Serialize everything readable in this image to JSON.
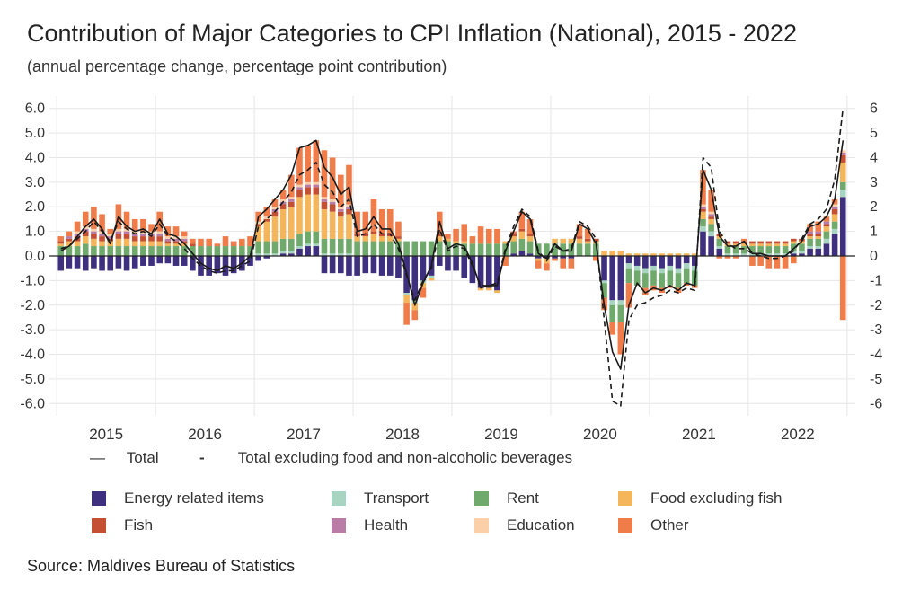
{
  "chart_data": {
    "type": "bar",
    "title": "Contribution of Major Categories to CPI Inflation (National), 2015 - 2022",
    "subtitle": "(annual percentage change, percentage point contribution)",
    "source": "Source: Maldives Bureau of Statistics",
    "ylim": [
      -6.5,
      6.5
    ],
    "y_ticks_left": [
      "6.0",
      "5.0",
      "4.0",
      "3.0",
      "2.0",
      "1.0",
      "0.0",
      "-1.0",
      "-2.0",
      "-3.0",
      "-4.0",
      "-5.0",
      "-6.0"
    ],
    "y_ticks_right": [
      "6",
      "5",
      "4",
      "3",
      "2",
      "1",
      "0",
      "-1",
      "-2",
      "-3",
      "-4",
      "-5",
      "-6"
    ],
    "x_ticks": [
      "2015",
      "2016",
      "2017",
      "2018",
      "2019",
      "2020",
      "2021",
      "2022"
    ],
    "grid": true,
    "start_month": "2015-01",
    "lines": [
      {
        "name": "Total",
        "style": "solid",
        "color": "#1a1a1a",
        "values": [
          0.2,
          0.4,
          0.8,
          1.2,
          1.5,
          1.1,
          0.5,
          1.6,
          1.2,
          1.0,
          1.1,
          0.9,
          1.5,
          0.9,
          0.8,
          0.5,
          0.1,
          -0.3,
          -0.5,
          -0.6,
          -0.4,
          -0.5,
          -0.3,
          0.0,
          1.6,
          1.9,
          2.3,
          2.7,
          3.3,
          4.4,
          4.5,
          4.7,
          3.6,
          3.2,
          2.5,
          2.8,
          1.0,
          1.1,
          1.6,
          1.1,
          1.1,
          0.5,
          -0.7,
          -2.0,
          -1.1,
          -0.4,
          1.4,
          0.3,
          0.5,
          0.4,
          -0.3,
          -1.3,
          -1.2,
          -1.2,
          0.2,
          1.0,
          1.8,
          1.5,
          0.1,
          -0.1,
          0.5,
          0.2,
          0.2,
          1.3,
          1.1,
          0.5,
          -2.0,
          -3.9,
          -4.6,
          -2.0,
          -1.1,
          -1.5,
          -1.3,
          -1.4,
          -1.2,
          -1.4,
          -1.1,
          -1.2,
          3.5,
          2.7,
          0.8,
          0.4,
          0.4,
          0.6,
          0.1,
          0.1,
          0.0,
          0.0,
          0.0,
          0.3,
          0.6,
          1.2,
          1.3,
          1.6,
          2.3,
          4.7
        ]
      },
      {
        "name": "Total excluding food and non-alcoholic beverages",
        "style": "dashed",
        "color": "#1a1a1a",
        "values": [
          0.3,
          0.4,
          0.7,
          1.0,
          1.4,
          1.0,
          0.6,
          1.4,
          1.1,
          0.9,
          1.0,
          0.8,
          1.3,
          0.8,
          0.6,
          0.3,
          -0.1,
          -0.4,
          -0.6,
          -0.7,
          -0.6,
          -0.6,
          -0.4,
          -0.2,
          1.2,
          1.5,
          1.8,
          2.2,
          2.6,
          3.3,
          3.5,
          3.8,
          2.9,
          2.6,
          2.0,
          2.3,
          0.8,
          0.9,
          1.3,
          0.9,
          0.9,
          0.3,
          -0.8,
          -1.8,
          -1.0,
          -0.5,
          1.1,
          0.2,
          0.4,
          0.3,
          -0.4,
          -1.2,
          -1.2,
          -1.1,
          0.3,
          1.2,
          1.9,
          1.6,
          0.2,
          -0.2,
          0.4,
          0.2,
          0.3,
          1.4,
          1.2,
          0.7,
          -2.6,
          -5.9,
          -6.1,
          -2.6,
          -2.0,
          -1.9,
          -1.7,
          -1.6,
          -1.4,
          -1.5,
          -1.3,
          -1.4,
          4.0,
          3.6,
          1.0,
          0.5,
          0.3,
          0.3,
          0.1,
          0.0,
          -0.1,
          -0.1,
          0.0,
          0.2,
          0.7,
          1.3,
          1.5,
          1.9,
          3.1,
          6.0
        ]
      }
    ],
    "series": [
      {
        "name": "Energy related items",
        "color": "#3f2f7f",
        "values": [
          -0.6,
          -0.5,
          -0.5,
          -0.6,
          -0.5,
          -0.6,
          -0.6,
          -0.5,
          -0.6,
          -0.5,
          -0.4,
          -0.4,
          -0.3,
          -0.3,
          -0.4,
          -0.4,
          -0.6,
          -0.8,
          -0.8,
          -0.7,
          -0.8,
          -0.7,
          -0.6,
          -0.4,
          -0.2,
          -0.1,
          0.0,
          0.1,
          0.1,
          0.3,
          0.4,
          0.4,
          -0.7,
          -0.7,
          -0.7,
          -0.8,
          -0.8,
          -0.7,
          -0.7,
          -0.8,
          -0.8,
          -0.9,
          -1.5,
          -1.8,
          -1.0,
          -0.8,
          -0.4,
          -0.6,
          -0.6,
          -0.9,
          -1.1,
          -1.3,
          -1.3,
          -1.4,
          0.0,
          0.1,
          0.2,
          0.1,
          -0.1,
          -0.1,
          -0.1,
          -0.1,
          -0.1,
          0.0,
          0.0,
          0.0,
          -1.0,
          -1.8,
          -1.8,
          -0.3,
          -0.4,
          -0.5,
          -0.4,
          -0.5,
          -0.4,
          -0.5,
          -0.3,
          -0.4,
          1.0,
          0.8,
          0.3,
          0.0,
          0.0,
          0.0,
          0.0,
          0.0,
          0.0,
          0.0,
          0.0,
          0.1,
          0.1,
          0.3,
          0.3,
          0.5,
          0.9,
          2.4
        ]
      },
      {
        "name": "Transport",
        "color": "#a8d5c2",
        "values": [
          0.0,
          0.0,
          0.0,
          0.0,
          0.0,
          0.0,
          0.0,
          0.0,
          0.0,
          0.0,
          0.0,
          0.0,
          0.0,
          0.0,
          0.0,
          0.0,
          0.0,
          0.0,
          0.0,
          0.0,
          0.0,
          0.0,
          0.0,
          0.0,
          0.1,
          0.1,
          0.1,
          0.1,
          0.1,
          0.1,
          0.1,
          0.1,
          0.1,
          0.1,
          0.1,
          0.1,
          0.0,
          0.0,
          0.0,
          0.0,
          0.0,
          0.0,
          -0.1,
          -0.1,
          -0.1,
          -0.1,
          0.0,
          0.0,
          0.0,
          0.0,
          0.0,
          0.0,
          0.0,
          0.0,
          0.0,
          0.0,
          0.0,
          0.0,
          0.0,
          0.0,
          0.0,
          0.0,
          0.0,
          0.0,
          0.0,
          0.0,
          -0.1,
          -0.2,
          -0.2,
          -0.2,
          -0.2,
          -0.2,
          -0.2,
          -0.2,
          -0.2,
          -0.2,
          -0.2,
          -0.2,
          0.2,
          0.2,
          0.1,
          0.1,
          0.1,
          0.1,
          0.1,
          0.1,
          0.1,
          0.1,
          0.1,
          0.1,
          0.1,
          0.1,
          0.1,
          0.2,
          0.2,
          0.3
        ]
      },
      {
        "name": "Rent",
        "color": "#6fa96c",
        "values": [
          0.4,
          0.4,
          0.4,
          0.5,
          0.4,
          0.4,
          0.4,
          0.4,
          0.4,
          0.4,
          0.4,
          0.4,
          0.4,
          0.4,
          0.4,
          0.4,
          0.4,
          0.4,
          0.4,
          0.4,
          0.4,
          0.4,
          0.4,
          0.4,
          0.5,
          0.5,
          0.5,
          0.5,
          0.5,
          0.5,
          0.5,
          0.5,
          0.6,
          0.6,
          0.6,
          0.6,
          0.6,
          0.6,
          0.6,
          0.6,
          0.6,
          0.6,
          0.6,
          0.6,
          0.6,
          0.6,
          0.6,
          0.6,
          0.5,
          0.5,
          0.5,
          0.5,
          0.5,
          0.5,
          0.5,
          0.5,
          0.5,
          0.5,
          0.5,
          0.5,
          0.5,
          0.5,
          0.5,
          0.5,
          0.5,
          0.5,
          -0.6,
          -0.7,
          -0.7,
          -0.6,
          -0.6,
          -0.6,
          -0.6,
          -0.6,
          -0.6,
          -0.6,
          -0.6,
          -0.6,
          0.3,
          0.3,
          0.3,
          0.3,
          0.3,
          0.3,
          0.3,
          0.3,
          0.3,
          0.3,
          0.3,
          0.3,
          0.3,
          0.3,
          0.3,
          0.3,
          0.3,
          0.3
        ]
      },
      {
        "name": "Food excluding fish",
        "color": "#f5b55a",
        "values": [
          0.1,
          0.2,
          0.2,
          0.3,
          0.3,
          0.2,
          0.2,
          0.3,
          0.3,
          0.2,
          0.2,
          0.2,
          0.2,
          0.1,
          0.1,
          0.1,
          0.0,
          0.0,
          0.0,
          0.0,
          0.0,
          0.0,
          0.0,
          0.0,
          0.6,
          0.8,
          1.0,
          1.2,
          1.3,
          1.5,
          1.5,
          1.5,
          1.2,
          1.1,
          0.9,
          1.0,
          0.2,
          0.2,
          0.3,
          0.2,
          0.2,
          0.1,
          -0.3,
          -0.3,
          -0.2,
          -0.1,
          0.2,
          0.1,
          0.1,
          0.1,
          0.0,
          -0.1,
          -0.1,
          -0.1,
          0.1,
          0.2,
          0.3,
          0.2,
          -0.1,
          -0.2,
          0.2,
          0.2,
          0.2,
          0.2,
          0.1,
          0.1,
          0.2,
          0.2,
          0.2,
          0.1,
          0.1,
          0.1,
          0.1,
          0.1,
          0.1,
          0.1,
          0.1,
          0.1,
          0.3,
          0.2,
          0.1,
          0.1,
          0.1,
          0.1,
          0.1,
          0.1,
          0.1,
          0.1,
          0.1,
          0.1,
          0.1,
          0.1,
          0.1,
          0.2,
          0.3,
          0.8
        ]
      },
      {
        "name": "Fish",
        "color": "#c44f33",
        "values": [
          0.1,
          0.1,
          0.2,
          0.2,
          0.2,
          0.2,
          0.1,
          0.2,
          0.2,
          0.2,
          0.2,
          0.2,
          0.2,
          0.1,
          0.1,
          0.1,
          0.1,
          0.0,
          0.0,
          0.0,
          0.0,
          0.0,
          0.0,
          0.0,
          0.1,
          0.1,
          0.2,
          0.2,
          0.2,
          0.3,
          0.3,
          0.3,
          0.3,
          0.3,
          0.2,
          0.2,
          0.1,
          0.1,
          0.1,
          0.1,
          0.1,
          0.1,
          0.0,
          0.0,
          0.0,
          0.0,
          0.1,
          0.0,
          0.0,
          0.0,
          0.0,
          0.0,
          0.0,
          0.0,
          0.0,
          0.1,
          0.1,
          0.1,
          0.0,
          0.0,
          0.0,
          0.0,
          0.0,
          0.1,
          0.1,
          0.1,
          0.0,
          0.0,
          0.0,
          0.0,
          0.0,
          0.0,
          0.0,
          0.0,
          0.0,
          0.0,
          0.0,
          0.0,
          0.1,
          0.1,
          0.1,
          0.1,
          0.1,
          0.1,
          0.1,
          0.1,
          0.1,
          0.1,
          0.1,
          0.1,
          0.1,
          0.1,
          0.1,
          0.1,
          0.2,
          0.3
        ]
      },
      {
        "name": "Health",
        "color": "#b97ca6",
        "values": [
          0.0,
          0.1,
          0.1,
          0.1,
          0.1,
          0.1,
          0.1,
          0.1,
          0.1,
          0.1,
          0.1,
          0.1,
          0.1,
          0.1,
          0.1,
          0.1,
          0.0,
          0.0,
          0.0,
          0.0,
          0.0,
          0.0,
          0.0,
          0.0,
          0.0,
          0.0,
          0.1,
          0.1,
          0.1,
          0.1,
          0.1,
          0.1,
          0.1,
          0.1,
          0.1,
          0.1,
          0.0,
          0.0,
          0.0,
          0.0,
          0.0,
          0.0,
          0.0,
          0.0,
          0.0,
          0.0,
          0.0,
          0.0,
          0.0,
          0.0,
          0.0,
          0.0,
          0.0,
          0.0,
          0.0,
          0.0,
          0.0,
          0.0,
          0.0,
          0.0,
          0.0,
          0.0,
          0.0,
          0.0,
          0.0,
          0.0,
          0.0,
          0.0,
          0.0,
          0.0,
          0.0,
          0.0,
          0.0,
          0.0,
          0.0,
          0.0,
          0.0,
          0.0,
          0.1,
          0.1,
          0.0,
          0.0,
          0.0,
          0.0,
          0.0,
          0.0,
          0.0,
          0.0,
          0.0,
          0.0,
          0.0,
          0.1,
          0.1,
          0.1,
          0.1,
          0.1
        ]
      },
      {
        "name": "Education",
        "color": "#fbd0a8",
        "values": [
          0.0,
          0.0,
          0.1,
          0.1,
          0.1,
          0.1,
          0.1,
          0.1,
          0.1,
          0.1,
          0.1,
          0.1,
          0.1,
          0.1,
          0.1,
          0.1,
          0.0,
          0.0,
          0.0,
          0.0,
          0.0,
          0.0,
          0.0,
          0.0,
          0.1,
          0.1,
          0.1,
          0.1,
          0.1,
          0.1,
          0.1,
          0.1,
          0.1,
          0.1,
          0.1,
          0.1,
          0.0,
          0.0,
          0.0,
          0.0,
          0.0,
          0.0,
          0.0,
          0.0,
          0.0,
          0.0,
          0.0,
          0.0,
          0.0,
          0.0,
          0.0,
          0.0,
          0.0,
          0.0,
          0.0,
          0.0,
          0.0,
          0.0,
          0.0,
          0.0,
          0.0,
          0.0,
          0.0,
          0.0,
          0.0,
          0.0,
          0.0,
          0.0,
          0.0,
          0.0,
          0.0,
          0.0,
          0.0,
          0.0,
          0.0,
          0.0,
          0.0,
          0.0,
          0.1,
          0.1,
          0.0,
          0.0,
          0.0,
          0.0,
          0.0,
          0.0,
          0.0,
          0.0,
          0.0,
          0.0,
          0.0,
          0.0,
          0.0,
          0.0,
          0.1,
          0.1
        ]
      },
      {
        "name": "Other",
        "color": "#f07c4a",
        "values": [
          0.2,
          0.2,
          0.4,
          0.6,
          0.9,
          0.7,
          0.2,
          1.0,
          0.7,
          0.5,
          0.5,
          0.3,
          0.8,
          0.4,
          0.4,
          0.2,
          0.2,
          0.3,
          0.3,
          0.1,
          0.4,
          0.2,
          0.3,
          0.4,
          0.4,
          0.4,
          0.3,
          0.4,
          0.9,
          1.5,
          1.5,
          1.7,
          1.9,
          1.7,
          1.3,
          1.6,
          0.9,
          0.9,
          1.3,
          1.0,
          1.0,
          0.6,
          -0.9,
          -0.4,
          -0.4,
          -0.0,
          0.9,
          0.2,
          0.5,
          0.7,
          0.3,
          0.7,
          0.6,
          0.6,
          -0.4,
          0.1,
          0.7,
          0.6,
          -0.3,
          -0.3,
          -0.1,
          -0.4,
          -0.4,
          0.5,
          0.4,
          -0.2,
          -0.5,
          -0.5,
          -1.3,
          -1.0,
          -0.0,
          -0.3,
          -0.2,
          -0.2,
          -0.1,
          -0.2,
          -0.1,
          -0.1,
          1.4,
          0.9,
          -0.1,
          -0.1,
          -0.1,
          0.1,
          -0.4,
          -0.4,
          -0.5,
          -0.5,
          -0.5,
          -0.3,
          0.0,
          0.3,
          0.4,
          0.2,
          0.2,
          -2.6
        ]
      }
    ]
  },
  "legend": {
    "line_items": [
      {
        "label": "Total",
        "symbol": "—"
      },
      {
        "label": "Total excluding food and non-alcoholic beverages",
        "symbol": "-"
      }
    ]
  }
}
